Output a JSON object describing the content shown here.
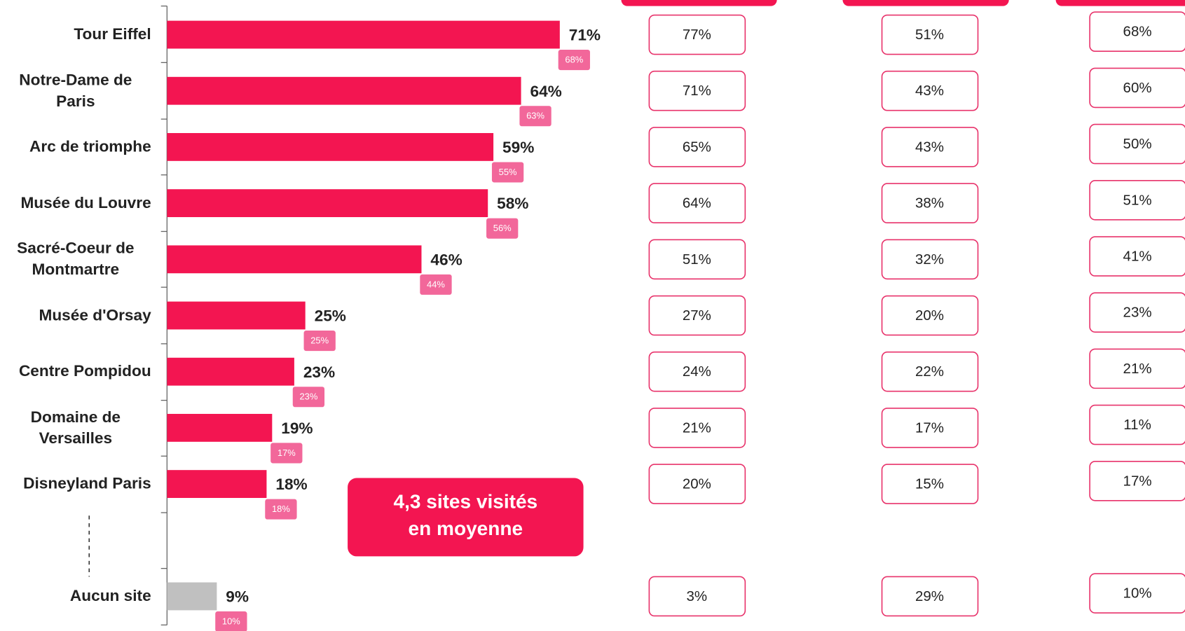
{
  "chart_data": {
    "type": "bar",
    "orientation": "horizontal",
    "categories": [
      "Tour Eiffel",
      "Notre-Dame de Paris",
      "Arc de triomphe",
      "Musée du Louvre",
      "Sacré-Coeur de Montmartre",
      "Musée d'Orsay",
      "Centre Pompidou",
      "Domaine de Versailles",
      "Disneyland Paris",
      "Aucun site"
    ],
    "values": [
      71,
      64,
      59,
      58,
      46,
      25,
      23,
      19,
      18,
      9
    ],
    "value_labels": [
      "71%",
      "64%",
      "59%",
      "58%",
      "46%",
      "25%",
      "23%",
      "19%",
      "18%",
      "9%"
    ],
    "colors": [
      "#f31551",
      "#f31551",
      "#f31551",
      "#f31551",
      "#f31551",
      "#f31551",
      "#f31551",
      "#f31551",
      "#f31551",
      "#c0c0c0"
    ],
    "reference_values": [
      68,
      63,
      55,
      56,
      44,
      25,
      23,
      17,
      18,
      10
    ],
    "reference_labels": [
      "68%",
      "63%",
      "55%",
      "56%",
      "44%",
      "25%",
      "23%",
      "17%",
      "18%",
      "10%"
    ],
    "reference_color": "#f2679a",
    "xlim": [
      0,
      100
    ],
    "annotation": [
      "4,3 sites visités",
      "en moyenne"
    ]
  },
  "table": {
    "columns": [
      [
        "77%",
        "71%",
        "65%",
        "64%",
        "51%",
        "27%",
        "24%",
        "21%",
        "20%",
        "3%"
      ],
      [
        "51%",
        "43%",
        "43%",
        "38%",
        "32%",
        "20%",
        "22%",
        "17%",
        "15%",
        "29%"
      ],
      [
        "68%",
        "60%",
        "50%",
        "51%",
        "41%",
        "23%",
        "21%",
        "11%",
        "17%",
        "10%"
      ]
    ]
  }
}
